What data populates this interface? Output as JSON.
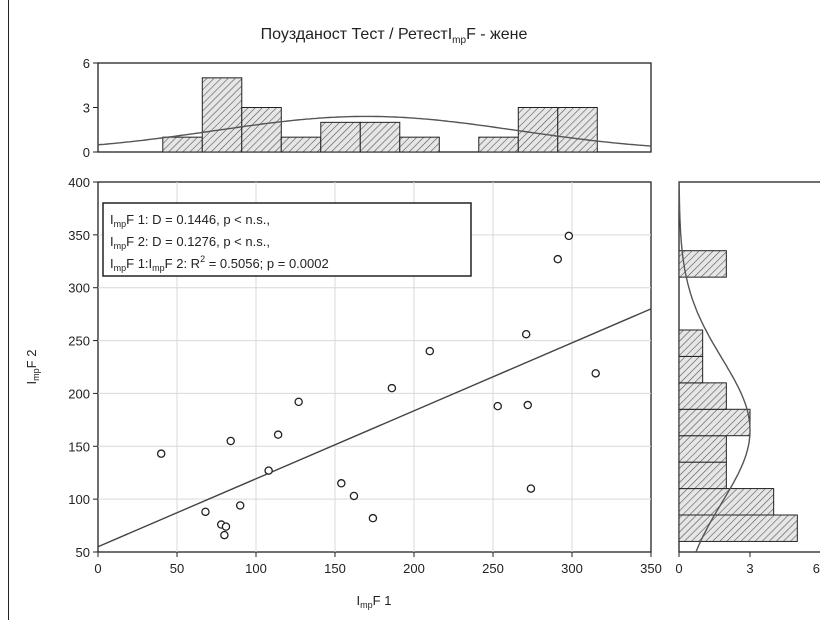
{
  "chart_data": {
    "type": "scatter",
    "title": "Поузданост Тест / Ретест",
    "title_var": {
      "base": "I",
      "sub": "mp",
      "tail": "F - жене"
    },
    "xlabel": {
      "base": "I",
      "sub": "mp",
      "tail": "F 1"
    },
    "ylabel": {
      "base": "I",
      "sub": "mp",
      "tail": "F 2"
    },
    "xlim": [
      0,
      350
    ],
    "ylim": [
      50,
      400
    ],
    "x_ticks": [
      "0",
      "50",
      "100",
      "150",
      "200",
      "250",
      "300",
      "350"
    ],
    "y_ticks": [
      "50",
      "100",
      "150",
      "200",
      "250",
      "300",
      "350",
      "400"
    ],
    "grid": true,
    "points": [
      {
        "x": 40,
        "y": 143
      },
      {
        "x": 68,
        "y": 88
      },
      {
        "x": 78,
        "y": 76
      },
      {
        "x": 80,
        "y": 66
      },
      {
        "x": 81,
        "y": 74
      },
      {
        "x": 84,
        "y": 155
      },
      {
        "x": 90,
        "y": 94
      },
      {
        "x": 108,
        "y": 127
      },
      {
        "x": 114,
        "y": 161
      },
      {
        "x": 127,
        "y": 192
      },
      {
        "x": 154,
        "y": 115
      },
      {
        "x": 162,
        "y": 103
      },
      {
        "x": 174,
        "y": 82
      },
      {
        "x": 186,
        "y": 205
      },
      {
        "x": 210,
        "y": 240
      },
      {
        "x": 253,
        "y": 188
      },
      {
        "x": 271,
        "y": 256
      },
      {
        "x": 272,
        "y": 189
      },
      {
        "x": 274,
        "y": 110
      },
      {
        "x": 291,
        "y": 327
      },
      {
        "x": 298,
        "y": 349
      },
      {
        "x": 315,
        "y": 219
      }
    ],
    "regression": {
      "x": [
        0,
        350
      ],
      "y": [
        55,
        280
      ]
    },
    "stats": [
      {
        "base": "I",
        "sub": "mp",
        "text": "F 1:  D = 0.1446, p < n.s.,"
      },
      {
        "base": "I",
        "sub": "mp",
        "text": "F 2:  D = 0.1276, p < n.s.,"
      },
      {
        "base": "I",
        "sub": "mp",
        "text": "F 1:I",
        "sub2": "mp",
        "text2": "F 2:  R",
        "sup": "2",
        "text3": " = 0.5056; p = 0.0002"
      }
    ],
    "top_histogram": {
      "ylim": [
        0,
        6
      ],
      "y_ticks": [
        "0",
        "3",
        "6"
      ],
      "bins": [
        {
          "from": 41,
          "to": 66,
          "count": 1
        },
        {
          "from": 66,
          "to": 91,
          "count": 5
        },
        {
          "from": 91,
          "to": 116,
          "count": 3
        },
        {
          "from": 116,
          "to": 141,
          "count": 1
        },
        {
          "from": 141,
          "to": 166,
          "count": 2
        },
        {
          "from": 166,
          "to": 191,
          "count": 2
        },
        {
          "from": 191,
          "to": 216,
          "count": 1
        },
        {
          "from": 241,
          "to": 266,
          "count": 1
        },
        {
          "from": 266,
          "to": 291,
          "count": 3
        },
        {
          "from": 291,
          "to": 316,
          "count": 3
        }
      ],
      "normal_curve": {
        "mean": 170,
        "sd": 95,
        "peak": 2.4
      }
    },
    "right_histogram": {
      "xlim": [
        0,
        6
      ],
      "x_ticks": [
        "0",
        "3",
        "6"
      ],
      "bins": [
        {
          "from": 60,
          "to": 85,
          "count": 5
        },
        {
          "from": 85,
          "to": 110,
          "count": 4
        },
        {
          "from": 110,
          "to": 135,
          "count": 2
        },
        {
          "from": 135,
          "to": 160,
          "count": 2
        },
        {
          "from": 160,
          "to": 185,
          "count": 3
        },
        {
          "from": 185,
          "to": 210,
          "count": 2
        },
        {
          "from": 210,
          "to": 235,
          "count": 1
        },
        {
          "from": 235,
          "to": 260,
          "count": 1
        },
        {
          "from": 310,
          "to": 335,
          "count": 2
        }
      ],
      "normal_curve": {
        "mean": 165,
        "sd": 68,
        "peak": 3.0
      }
    }
  }
}
